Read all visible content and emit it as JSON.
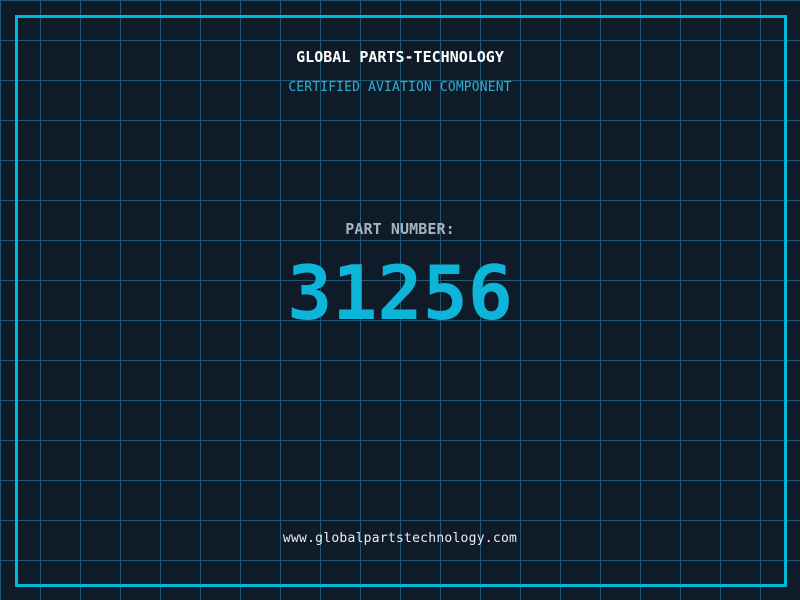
{
  "card": {
    "title": "GLOBAL PARTS-TECHNOLOGY",
    "subtitle": "CERTIFIED AVIATION COMPONENT",
    "part_label": "PART NUMBER:",
    "part_number": "31256",
    "website": "www.globalpartstechnology.com"
  },
  "colors": {
    "background": "#101b2a",
    "grid_line": "#1f5872",
    "frame_cyan": "#00b8d9",
    "number_cyan": "#0db5d8",
    "subtitle_cyan": "#2eb0d4",
    "label_gray": "#a9b3bd",
    "title_white": "#ffffff",
    "url_white": "#e9edf0"
  }
}
